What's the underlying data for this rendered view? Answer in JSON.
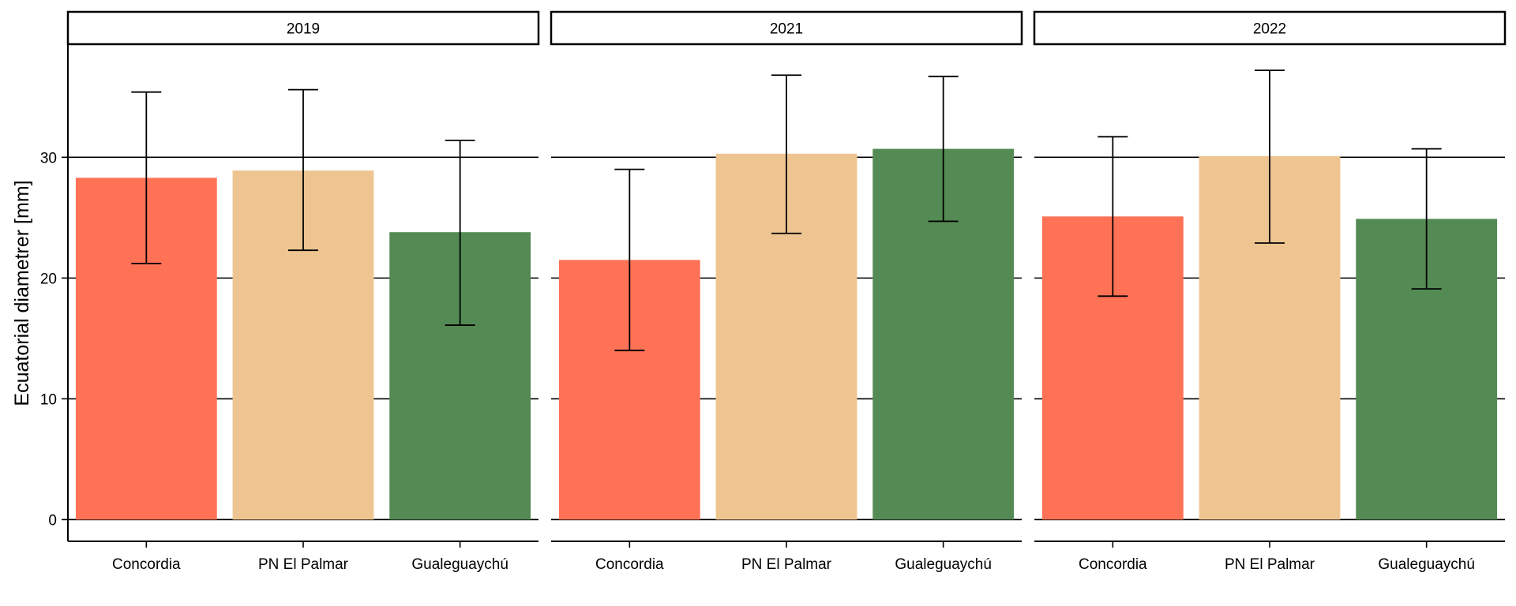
{
  "chart_data": {
    "type": "bar",
    "faceted_by": "year",
    "ylabel": "Ecuatorial diametrer [mm]",
    "xlabel": "",
    "ylim": [
      -1.8,
      39.3
    ],
    "yticks": [
      0,
      10,
      20,
      30
    ],
    "grid": "horizontal major lines only",
    "legend": "none",
    "error_bars": true,
    "categories": [
      "Concordia",
      "PN El Palmar",
      "Gualeguaychú"
    ],
    "colors": {
      "Concordia": "#FF7256",
      "PN El Palmar": "#EEC591",
      "Gualeguaychú": "#548B54"
    },
    "panels": [
      {
        "facet": "2019",
        "values": [
          28.3,
          28.9,
          23.8
        ],
        "error_low": [
          21.2,
          22.3,
          16.1
        ],
        "error_high": [
          35.4,
          35.6,
          31.4
        ]
      },
      {
        "facet": "2021",
        "values": [
          21.5,
          30.3,
          30.7
        ],
        "error_low": [
          14.0,
          23.7,
          24.7
        ],
        "error_high": [
          29.0,
          36.8,
          36.7
        ]
      },
      {
        "facet": "2022",
        "values": [
          25.1,
          30.1,
          24.9
        ],
        "error_low": [
          18.5,
          22.9,
          19.1
        ],
        "error_high": [
          31.7,
          37.2,
          30.7
        ]
      }
    ]
  }
}
